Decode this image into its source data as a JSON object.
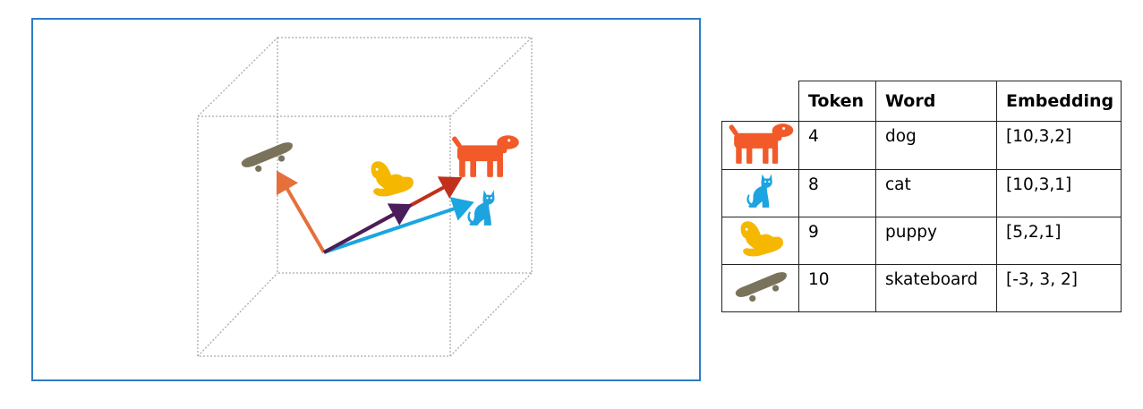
{
  "colors": {
    "frame": "#2e7cc6",
    "dog": "#f25a2a",
    "cat": "#1da4e0",
    "puppy": "#f5b700",
    "skateboard": "#7a735c",
    "arrow_skateboard": "#e5703a",
    "arrow_dog": "#c0301a",
    "arrow_cat": "#1aa6e0",
    "arrow_puppy": "#4a1e5a"
  },
  "diagram": {
    "icons": [
      "skateboard-icon",
      "puppy-icon",
      "dog-icon",
      "cat-icon"
    ]
  },
  "table": {
    "headers": [
      "Token",
      "Word",
      "Embedding"
    ],
    "rows": [
      {
        "icon": "dog-icon",
        "token": "4",
        "word": "dog",
        "embedding": "[10,3,2]"
      },
      {
        "icon": "cat-icon",
        "token": "8",
        "word": "cat",
        "embedding": "[10,3,1]"
      },
      {
        "icon": "puppy-icon",
        "token": "9",
        "word": "puppy",
        "embedding": "[5,2,1]"
      },
      {
        "icon": "skateboard-icon",
        "token": "10",
        "word": "skateboard",
        "embedding": "[-3, 3, 2]"
      }
    ]
  }
}
